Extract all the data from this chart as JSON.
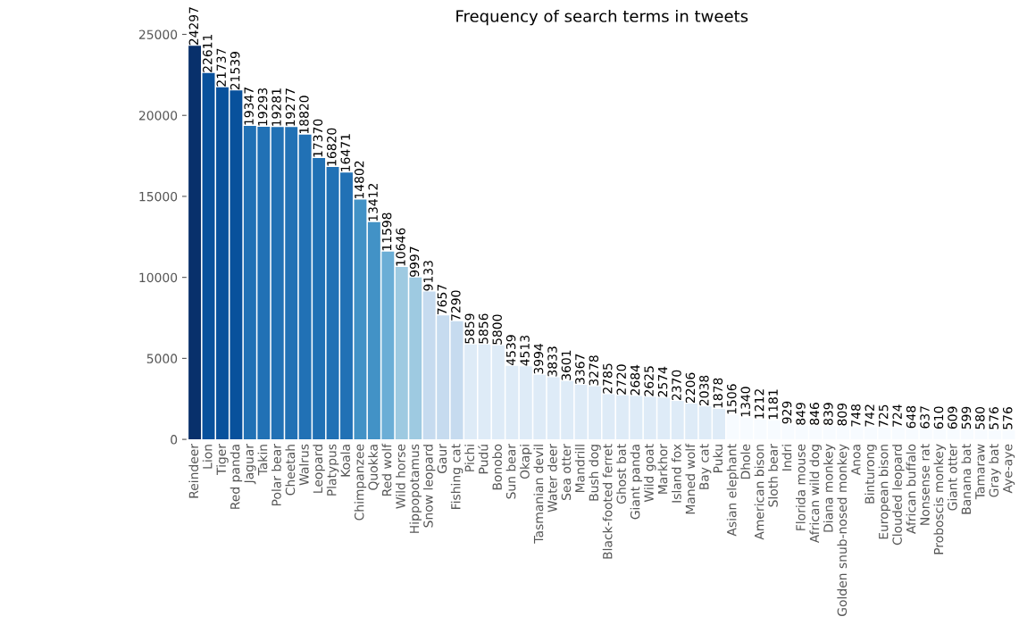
{
  "chart_data": {
    "type": "bar",
    "title": "Frequency of search terms in tweets",
    "categories": [
      "Reindeer",
      "Lion",
      "Tiger",
      "Red panda",
      "Jaguar",
      "Takin",
      "Polar bear",
      "Cheetah",
      "Walrus",
      "Leopard",
      "Platypus",
      "Koala",
      "Chimpanzee",
      "Quokka",
      "Red wolf",
      "Wild horse",
      "Hippopotamus",
      "Snow leopard",
      "Gaur",
      "Fishing cat",
      "Pichi",
      "Pudú",
      "Bonobo",
      "Sun bear",
      "Okapi",
      "Tasmanian devil",
      "Water deer",
      "Sea otter",
      "Mandrill",
      "Bush dog",
      "Black-footed ferret",
      "Ghost bat",
      "Giant panda",
      "Wild goat",
      "Markhor",
      "Island fox",
      "Maned wolf",
      "Bay cat",
      "Puku",
      "Asian elephant",
      "Dhole",
      "American bison",
      "Sloth bear",
      "Indri",
      "Florida mouse",
      "African wild dog",
      "Diana monkey",
      "Golden snub-nosed monkey",
      "Anoa",
      "Binturong",
      "European bison",
      "Clouded leopard",
      "African buffalo",
      "Nonsense rat",
      "Proboscis monkey",
      "Giant otter",
      "Banana bat",
      "Tamaraw",
      "Gray bat",
      "Aye-aye"
    ],
    "values": [
      24297,
      22611,
      21737,
      21539,
      19347,
      19293,
      19281,
      19277,
      18820,
      17370,
      16820,
      16471,
      14802,
      13412,
      11598,
      10646,
      9997,
      9133,
      7657,
      7290,
      5859,
      5856,
      5800,
      4539,
      4513,
      3994,
      3833,
      3601,
      3367,
      3278,
      2785,
      2720,
      2684,
      2625,
      2574,
      2370,
      2206,
      2038,
      1878,
      1506,
      1340,
      1212,
      1181,
      929,
      849,
      846,
      839,
      809,
      748,
      742,
      725,
      724,
      648,
      637,
      610,
      609,
      599,
      580,
      576,
      576
    ],
    "colors": [
      "#08306b",
      "#08519c",
      "#08519c",
      "#08519c",
      "#2171b5",
      "#2171b5",
      "#2171b5",
      "#2171b5",
      "#2171b5",
      "#2171b5",
      "#2171b5",
      "#2171b5",
      "#4292c6",
      "#4292c6",
      "#6baed6",
      "#9ecae1",
      "#9ecae1",
      "#c6dbef",
      "#c6dbef",
      "#c6dbef",
      "#deebf7",
      "#deebf7",
      "#deebf7",
      "#deebf7",
      "#deebf7",
      "#deebf7",
      "#deebf7",
      "#deebf7",
      "#deebf7",
      "#deebf7",
      "#deebf7",
      "#deebf7",
      "#deebf7",
      "#deebf7",
      "#deebf7",
      "#deebf7",
      "#deebf7",
      "#deebf7",
      "#deebf7",
      "#f7fbff",
      "#f7fbff",
      "#f7fbff",
      "#f7fbff",
      "#f7fbff",
      "#f7fbff",
      "#f7fbff",
      "#f7fbff",
      "#f7fbff",
      "#f7fbff",
      "#f7fbff",
      "#f7fbff",
      "#f7fbff",
      "#f7fbff",
      "#f7fbff",
      "#f7fbff",
      "#f7fbff",
      "#f7fbff",
      "#f7fbff",
      "#f7fbff",
      "#f7fbff"
    ],
    "ylim": [
      0,
      25000
    ],
    "yticks": [
      0,
      5000,
      10000,
      15000,
      20000,
      25000
    ],
    "data_labels": true,
    "grid": false,
    "legend": false
  }
}
